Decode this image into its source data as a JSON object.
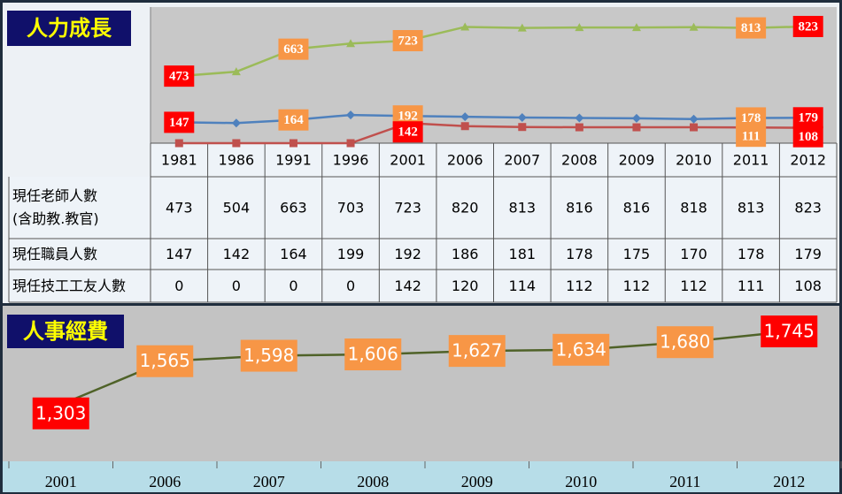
{
  "chart_data": [
    {
      "type": "line",
      "title": "人力成長",
      "categories": [
        "1981",
        "1986",
        "1991",
        "1996",
        "2001",
        "2006",
        "2007",
        "2008",
        "2009",
        "2010",
        "2011",
        "2012"
      ],
      "series": [
        {
          "name": "現任老師人數\n(含助教.教官)",
          "color": "#9bbb59",
          "marker": "triangle",
          "values": [
            473,
            504,
            663,
            703,
            723,
            820,
            813,
            816,
            816,
            818,
            813,
            823
          ],
          "label_indices": [
            0,
            2,
            4,
            10,
            11
          ]
        },
        {
          "name": "現任職員人數",
          "color": "#4f81bd",
          "marker": "diamond",
          "values": [
            147,
            142,
            164,
            199,
            192,
            186,
            181,
            178,
            175,
            170,
            178,
            179
          ],
          "label_indices": [
            0,
            2,
            4,
            10,
            11
          ]
        },
        {
          "name": "現任技工工友人數",
          "color": "#c0504d",
          "marker": "square",
          "values": [
            0,
            0,
            0,
            0,
            142,
            120,
            114,
            112,
            112,
            112,
            111,
            108
          ],
          "label_indices": [
            4,
            10,
            11
          ]
        }
      ],
      "ylim": [
        0,
        960
      ],
      "label_color": "#f79646",
      "highlight_color": "#ff0000"
    },
    {
      "type": "line",
      "title": "人事經費",
      "categories": [
        "2001",
        "2006",
        "2007",
        "2008",
        "2009",
        "2010",
        "2011",
        "2012"
      ],
      "series": [
        {
          "color": "#4f6228",
          "values": [
            1303,
            1565,
            1598,
            1606,
            1627,
            1634,
            1680,
            1745
          ],
          "value_labels": [
            "1,303",
            "1,565",
            "1,598",
            "1,606",
            "1,627",
            "1,634",
            "1,680",
            "1,745"
          ]
        }
      ],
      "ylim": [
        960,
        1900
      ],
      "label_color": "#f79646",
      "highlight_color": "#ff0000"
    }
  ]
}
